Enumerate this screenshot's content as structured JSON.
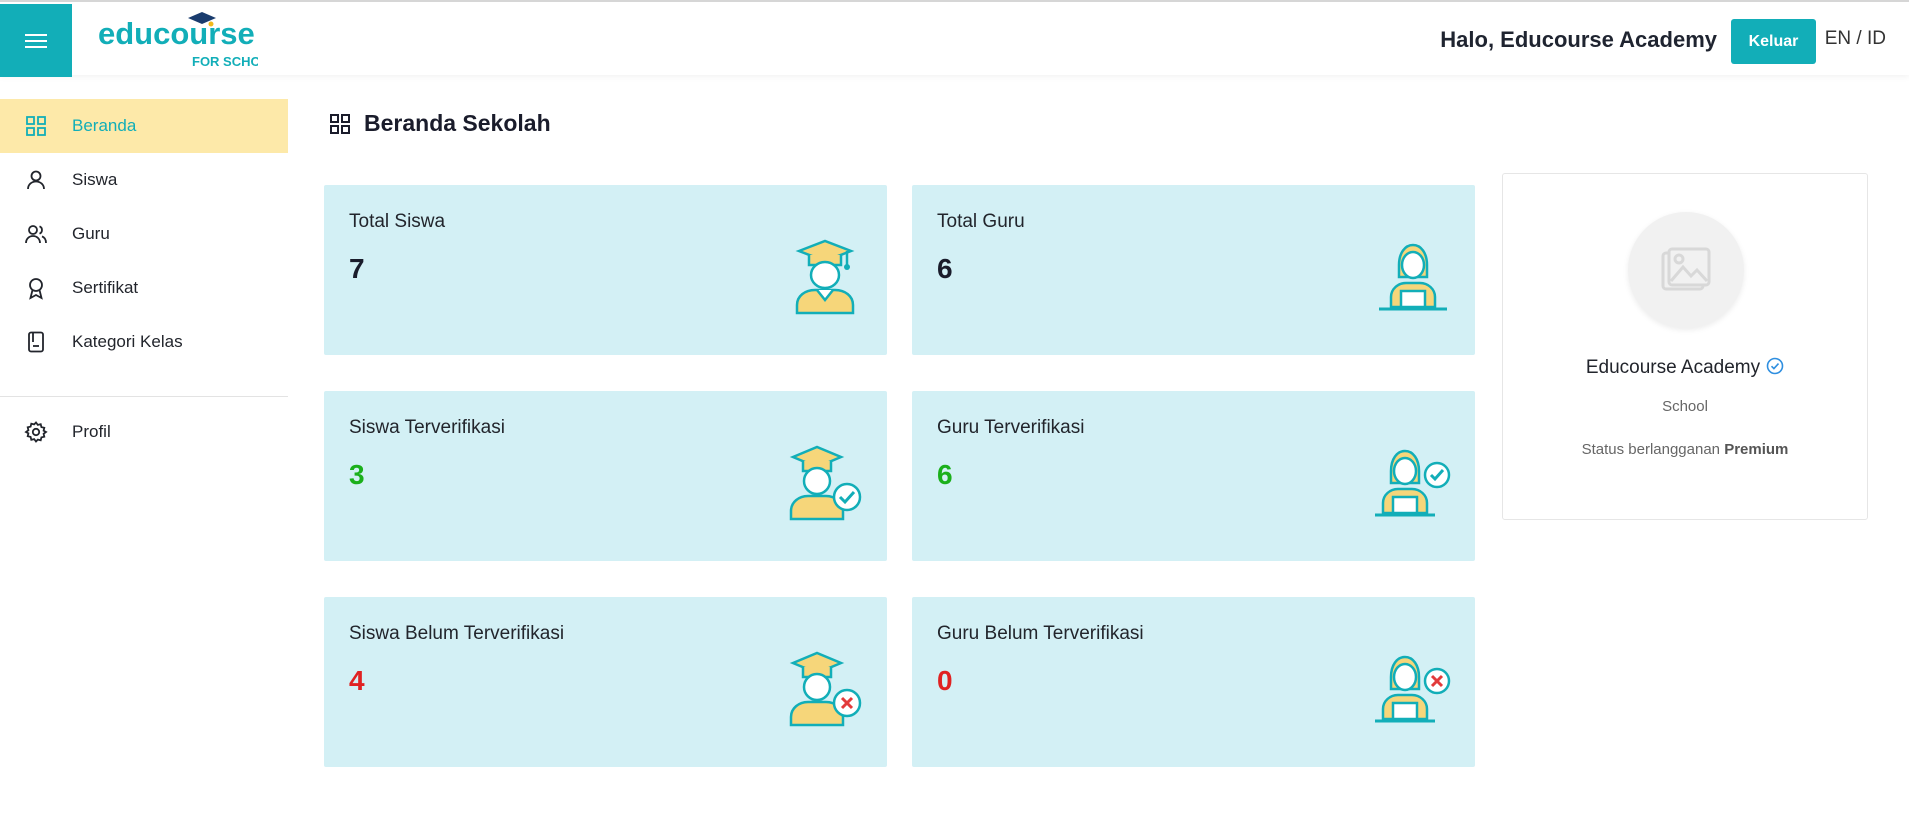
{
  "header": {
    "logo_text": "educourse",
    "logo_sub": "FOR SCHOOL",
    "greeting": "Halo, Educourse Academy",
    "logout_label": "Keluar",
    "lang_en": "EN",
    "lang_sep": " / ",
    "lang_id": "ID",
    "accent_color": "#12aeb8"
  },
  "sidebar": {
    "items": [
      {
        "label": "Beranda",
        "icon": "grid-icon",
        "active": true
      },
      {
        "label": "Siswa",
        "icon": "user-icon"
      },
      {
        "label": "Guru",
        "icon": "users-icon"
      },
      {
        "label": "Sertifikat",
        "icon": "award-icon"
      },
      {
        "label": "Kategori Kelas",
        "icon": "book-icon"
      }
    ],
    "bottom_items": [
      {
        "label": "Profil",
        "icon": "gear-icon"
      }
    ]
  },
  "main": {
    "title": "Beranda Sekolah",
    "cards": [
      {
        "label": "Total Siswa",
        "value": "7",
        "icon": "student-icon",
        "color": "#1a1c2b"
      },
      {
        "label": "Total Guru",
        "value": "6",
        "icon": "teacher-icon",
        "color": "#1a1c2b"
      },
      {
        "label": "Siswa Terverifikasi",
        "value": "3",
        "icon": "student-verified-icon",
        "color": "#1bb01b"
      },
      {
        "label": "Guru Terverifikasi",
        "value": "6",
        "icon": "teacher-verified-icon",
        "color": "#1bb01b"
      },
      {
        "label": "Siswa Belum Terverifikasi",
        "value": "4",
        "icon": "student-unverified-icon",
        "color": "#e02222"
      },
      {
        "label": "Guru Belum Terverifikasi",
        "value": "0",
        "icon": "teacher-unverified-icon",
        "color": "#e02222"
      }
    ]
  },
  "profile": {
    "name": "Educourse Academy",
    "type": "School",
    "status_prefix": "Status berlangganan",
    "status_value": "Premium"
  }
}
